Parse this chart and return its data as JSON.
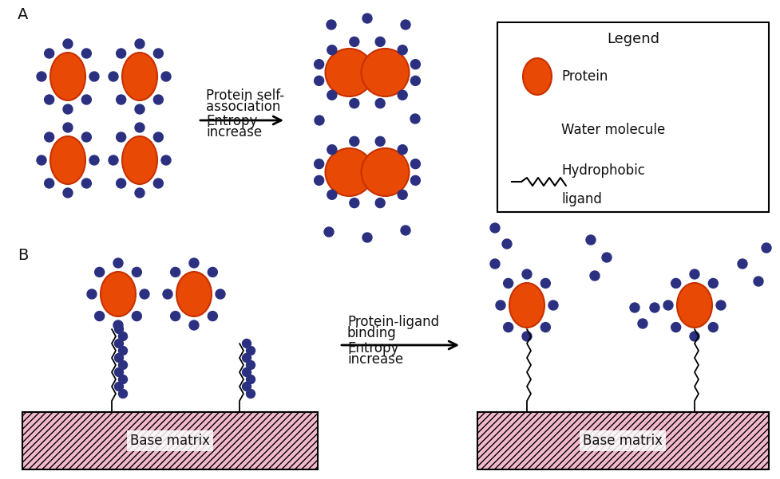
{
  "protein_color": "#E84A05",
  "protein_edge_color": "#C83000",
  "water_color": "#2B3080",
  "bg_color": "#FFFFFF",
  "matrix_fill": "#F2B8CC",
  "matrix_edge": "#333333",
  "text_color": "#111111",
  "label_A": "A",
  "label_B": "B",
  "legend_title": "Legend",
  "legend_protein_text": "Protein",
  "legend_water_text": "Water molecule",
  "legend_hydrophobic_text1": "Hydrophobic",
  "legend_hydrophobic_text2": "ligand",
  "arrow_text_A1": "Protein self-",
  "arrow_text_A2": "association",
  "arrow_text_A3": "Entropy",
  "arrow_text_A4": "increase",
  "arrow_text_B1": "Protein-ligand",
  "arrow_text_B2": "binding",
  "arrow_text_B3": "Entropy",
  "arrow_text_B4": "increase",
  "base_matrix_text": "Base matrix",
  "font_size_label": 14,
  "font_size_arrow_text": 12,
  "font_size_legend": 12,
  "font_size_legend_title": 13,
  "font_size_matrix": 12
}
